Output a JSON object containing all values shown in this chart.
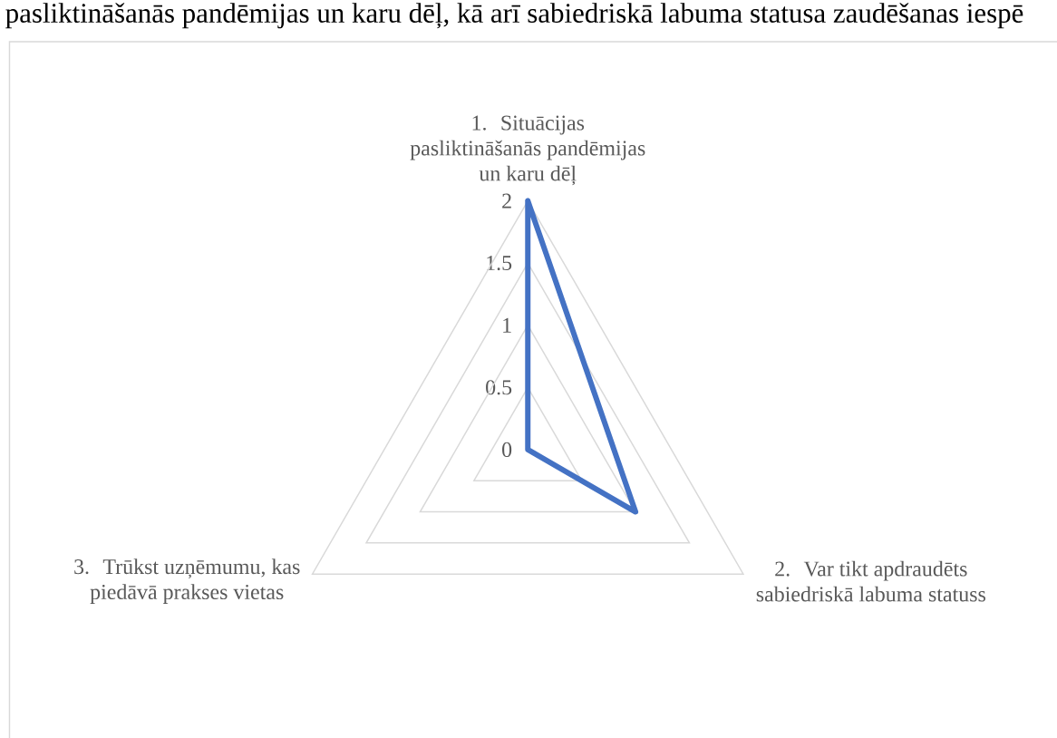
{
  "chart_data": {
    "type": "radar",
    "title": "pasliktināšanās pandēmijas un karu dēļ, kā arī sabiedriskā labuma statusa zaudēšanas iespē",
    "categories": [
      "1. Situācijas pasliktināšanās pandēmijas un karu dēļ",
      "2. Var tikt apdraudēts sabiedriskā labuma statuss",
      "3. Trūkst uzņēmumu, kas piedāvā prakses vietas"
    ],
    "series": [
      {
        "color": "#4472c4",
        "values": [
          2,
          1,
          0
        ]
      }
    ],
    "ylim": [
      0,
      2
    ],
    "yticks": [
      0,
      0.5,
      1,
      1.5,
      2
    ],
    "grid": true
  }
}
